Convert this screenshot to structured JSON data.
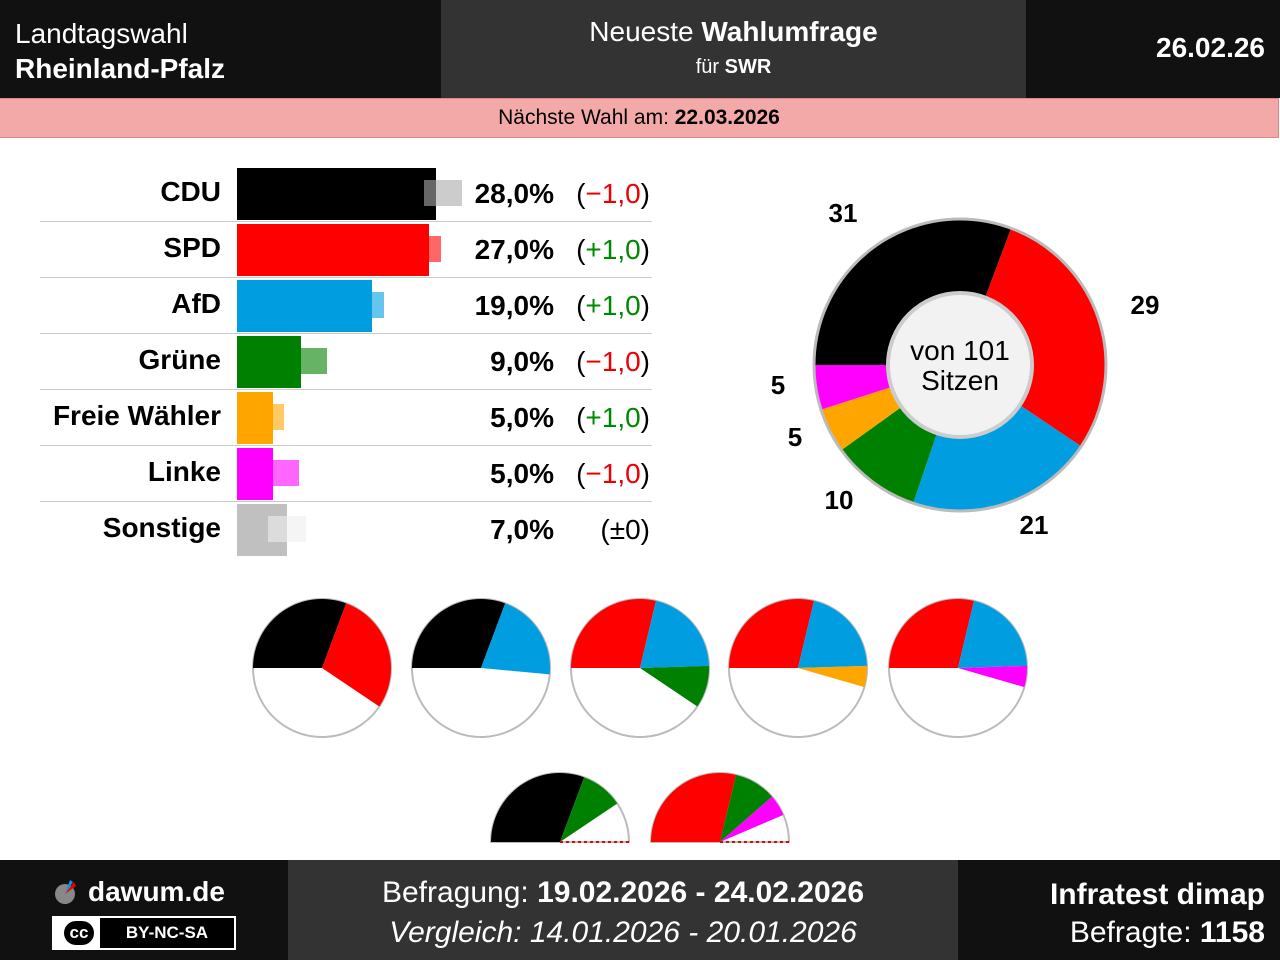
{
  "header": {
    "left_line1": "Landtagswahl",
    "left_line2": "Rheinland-Pfalz",
    "mid_line1_pre": "Neueste ",
    "mid_line1_bold": "Wahlumfrage",
    "mid_line2_pre": "für ",
    "mid_line2_bold": "SWR",
    "date": "26.02.26"
  },
  "next_election": {
    "label": "Nächste Wahl am: ",
    "date": "22.03.2026"
  },
  "chart_data": [
    {
      "type": "bar",
      "categories": [
        "CDU",
        "SPD",
        "AfD",
        "Grüne",
        "Freie Wähler",
        "Linke",
        "Sonstige"
      ],
      "values": [
        28.0,
        27.0,
        19.0,
        9.0,
        5.0,
        5.0,
        7.0
      ],
      "previous": [
        29.0,
        26.0,
        18.0,
        10.0,
        4.0,
        6.0,
        7.0
      ],
      "value_labels": [
        "28,0%",
        "27,0%",
        "19,0%",
        "9,0%",
        "5,0%",
        "5,0%",
        "7,0%"
      ],
      "change_labels": [
        "−1,0",
        "+1,0",
        "+1,0",
        "−1,0",
        "+1,0",
        "−1,0",
        "±0"
      ],
      "change_signs": [
        "neg",
        "pos",
        "pos",
        "neg",
        "pos",
        "neg",
        "zero"
      ],
      "colors": [
        "#000000",
        "#ff0000",
        "#009ee0",
        "#008000",
        "#ffa500",
        "#ff00ff",
        "#c0c0c0"
      ]
    },
    {
      "type": "pie",
      "categories": [
        "CDU",
        "SPD",
        "AfD",
        "Grüne",
        "Freie Wähler",
        "Linke"
      ],
      "values": [
        31,
        29,
        21,
        10,
        5,
        5
      ],
      "colors": [
        "#000000",
        "#ff0000",
        "#009ee0",
        "#008000",
        "#ffa500",
        "#ff00ff"
      ],
      "center_line1": "von 101",
      "center_line2": "Sitzen"
    },
    {
      "type": "pie",
      "title": "",
      "coalitions": [
        {
          "parties": [
            "CDU",
            "SPD"
          ],
          "seats": [
            31,
            29
          ]
        },
        {
          "parties": [
            "CDU",
            "AfD"
          ],
          "seats": [
            31,
            21
          ]
        },
        {
          "parties": [
            "SPD",
            "AfD",
            "Grüne"
          ],
          "seats": [
            29,
            21,
            10
          ]
        },
        {
          "parties": [
            "SPD",
            "AfD",
            "Freie Wähler"
          ],
          "seats": [
            29,
            21,
            5
          ]
        },
        {
          "parties": [
            "SPD",
            "AfD",
            "Linke"
          ],
          "seats": [
            29,
            21,
            5
          ]
        },
        {
          "parties": [
            "CDU",
            "Grüne"
          ],
          "seats": [
            31,
            10
          ]
        },
        {
          "parties": [
            "SPD",
            "Grüne",
            "Linke"
          ],
          "seats": [
            29,
            10,
            5
          ]
        }
      ],
      "total_seats": 101
    }
  ],
  "footer": {
    "brand": "dawum.de",
    "license": "BY-NC-SA",
    "cc": "cc",
    "survey_label": "Befragung: ",
    "survey_range": "19.02.2026 - 24.02.2026",
    "compare_label": "Vergleich: ",
    "compare_range": "14.01.2026 - 20.01.2026",
    "institute": "Infratest dimap",
    "respondents_label": "Befragte: ",
    "respondents": "1158"
  }
}
